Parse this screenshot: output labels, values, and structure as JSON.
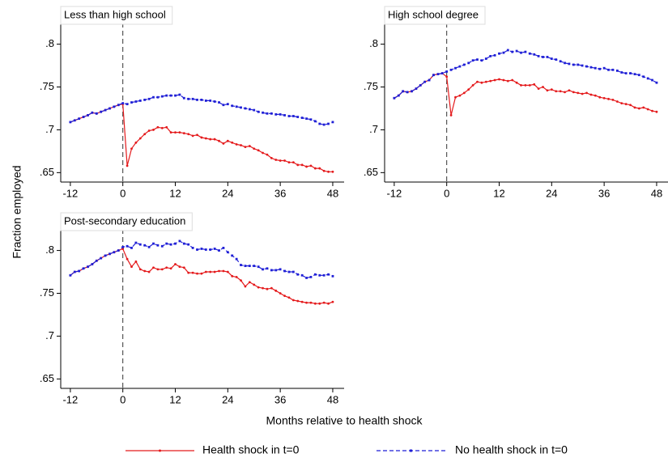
{
  "ylabel": "Fraction employed",
  "xlabel": "Months relative to health shock",
  "chart_data": [
    {
      "type": "line",
      "title": "Less than high school",
      "x": [
        -12,
        -11,
        -10,
        -9,
        -8,
        -7,
        -6,
        -5,
        -4,
        -3,
        -2,
        -1,
        0,
        1,
        2,
        3,
        4,
        5,
        6,
        7,
        8,
        9,
        10,
        11,
        12,
        13,
        14,
        15,
        16,
        17,
        18,
        19,
        20,
        21,
        22,
        23,
        24,
        25,
        26,
        27,
        28,
        29,
        30,
        31,
        32,
        33,
        34,
        35,
        36,
        37,
        38,
        39,
        40,
        41,
        42,
        43,
        44,
        45,
        46,
        47,
        48
      ],
      "series": [
        {
          "name": "Health shock in t=0",
          "color": "#e41a1c",
          "dash": false,
          "values": [
            0.709,
            0.711,
            0.713,
            0.715,
            0.717,
            0.72,
            0.719,
            0.721,
            0.723,
            0.725,
            0.727,
            0.729,
            0.73,
            0.658,
            0.678,
            0.685,
            0.69,
            0.695,
            0.699,
            0.7,
            0.703,
            0.702,
            0.703,
            0.697,
            0.697,
            0.697,
            0.696,
            0.695,
            0.693,
            0.694,
            0.691,
            0.69,
            0.689,
            0.689,
            0.687,
            0.684,
            0.687,
            0.685,
            0.683,
            0.682,
            0.68,
            0.681,
            0.678,
            0.676,
            0.673,
            0.671,
            0.667,
            0.665,
            0.664,
            0.664,
            0.662,
            0.662,
            0.659,
            0.659,
            0.657,
            0.658,
            0.655,
            0.655,
            0.652,
            0.651,
            0.651
          ]
        },
        {
          "name": "No health shock in t=0",
          "color": "#1f1fd6",
          "dash": true,
          "values": [
            0.709,
            0.711,
            0.713,
            0.715,
            0.717,
            0.72,
            0.719,
            0.721,
            0.723,
            0.725,
            0.727,
            0.729,
            0.731,
            0.73,
            0.732,
            0.733,
            0.734,
            0.735,
            0.736,
            0.738,
            0.738,
            0.739,
            0.74,
            0.74,
            0.74,
            0.741,
            0.737,
            0.736,
            0.736,
            0.735,
            0.735,
            0.734,
            0.734,
            0.733,
            0.732,
            0.729,
            0.73,
            0.728,
            0.727,
            0.726,
            0.725,
            0.724,
            0.723,
            0.721,
            0.72,
            0.719,
            0.719,
            0.718,
            0.718,
            0.717,
            0.716,
            0.716,
            0.715,
            0.714,
            0.713,
            0.712,
            0.71,
            0.707,
            0.706,
            0.707,
            0.709
          ]
        }
      ],
      "xlim": [
        -14.2,
        50.6
      ],
      "ylim": [
        0.639,
        0.844
      ],
      "xticks": [
        -12,
        0,
        12,
        24,
        36,
        48
      ],
      "yticks": [
        {
          "value": 0.65,
          "label": ".65"
        },
        {
          "value": 0.7,
          "label": ".7"
        },
        {
          "value": 0.75,
          "label": ".75"
        },
        {
          "value": 0.8,
          "label": ".8"
        }
      ],
      "xline": 0
    },
    {
      "type": "line",
      "title": "High school degree",
      "x": [
        -12,
        -11,
        -10,
        -9,
        -8,
        -7,
        -6,
        -5,
        -4,
        -3,
        -2,
        -1,
        0,
        1,
        2,
        3,
        4,
        5,
        6,
        7,
        8,
        9,
        10,
        11,
        12,
        13,
        14,
        15,
        16,
        17,
        18,
        19,
        20,
        21,
        22,
        23,
        24,
        25,
        26,
        27,
        28,
        29,
        30,
        31,
        32,
        33,
        34,
        35,
        36,
        37,
        38,
        39,
        40,
        41,
        42,
        43,
        44,
        45,
        46,
        47,
        48
      ],
      "series": [
        {
          "name": "Health shock in t=0",
          "color": "#e41a1c",
          "dash": false,
          "values": [
            0.737,
            0.74,
            0.745,
            0.744,
            0.745,
            0.748,
            0.752,
            0.756,
            0.758,
            0.764,
            0.765,
            0.766,
            0.762,
            0.717,
            0.738,
            0.74,
            0.743,
            0.747,
            0.752,
            0.756,
            0.755,
            0.756,
            0.757,
            0.758,
            0.759,
            0.758,
            0.757,
            0.758,
            0.755,
            0.752,
            0.752,
            0.752,
            0.753,
            0.748,
            0.75,
            0.746,
            0.747,
            0.745,
            0.745,
            0.744,
            0.746,
            0.744,
            0.743,
            0.742,
            0.743,
            0.741,
            0.74,
            0.738,
            0.737,
            0.736,
            0.735,
            0.733,
            0.731,
            0.73,
            0.729,
            0.726,
            0.725,
            0.726,
            0.724,
            0.722,
            0.721
          ]
        },
        {
          "name": "No health shock in t=0",
          "color": "#1f1fd6",
          "dash": true,
          "values": [
            0.737,
            0.74,
            0.745,
            0.744,
            0.745,
            0.748,
            0.752,
            0.756,
            0.758,
            0.764,
            0.765,
            0.766,
            0.768,
            0.77,
            0.772,
            0.774,
            0.776,
            0.778,
            0.781,
            0.782,
            0.781,
            0.783,
            0.786,
            0.787,
            0.789,
            0.79,
            0.793,
            0.791,
            0.792,
            0.79,
            0.791,
            0.789,
            0.788,
            0.786,
            0.785,
            0.785,
            0.783,
            0.782,
            0.78,
            0.778,
            0.777,
            0.776,
            0.776,
            0.775,
            0.774,
            0.773,
            0.772,
            0.771,
            0.772,
            0.77,
            0.77,
            0.769,
            0.767,
            0.766,
            0.766,
            0.765,
            0.764,
            0.762,
            0.76,
            0.758,
            0.755
          ]
        }
      ],
      "xlim": [
        -14.2,
        50.6
      ],
      "ylim": [
        0.639,
        0.844
      ],
      "xticks": [
        -12,
        0,
        12,
        24,
        36,
        48
      ],
      "yticks": [
        {
          "value": 0.65,
          "label": ".65"
        },
        {
          "value": 0.7,
          "label": ".7"
        },
        {
          "value": 0.75,
          "label": ".75"
        },
        {
          "value": 0.8,
          "label": ".8"
        }
      ],
      "xline": 0
    },
    {
      "type": "line",
      "title": "Post-secondary education",
      "x": [
        -12,
        -11,
        -10,
        -9,
        -8,
        -7,
        -6,
        -5,
        -4,
        -3,
        -2,
        -1,
        0,
        1,
        2,
        3,
        4,
        5,
        6,
        7,
        8,
        9,
        10,
        11,
        12,
        13,
        14,
        15,
        16,
        17,
        18,
        19,
        20,
        21,
        22,
        23,
        24,
        25,
        26,
        27,
        28,
        29,
        30,
        31,
        32,
        33,
        34,
        35,
        36,
        37,
        38,
        39,
        40,
        41,
        42,
        43,
        44,
        45,
        46,
        47,
        48
      ],
      "series": [
        {
          "name": "Health shock in t=0",
          "color": "#e41a1c",
          "dash": false,
          "values": [
            0.771,
            0.775,
            0.776,
            0.779,
            0.781,
            0.784,
            0.788,
            0.791,
            0.794,
            0.796,
            0.798,
            0.8,
            0.802,
            0.79,
            0.781,
            0.787,
            0.778,
            0.776,
            0.775,
            0.78,
            0.778,
            0.778,
            0.78,
            0.779,
            0.784,
            0.781,
            0.78,
            0.774,
            0.774,
            0.773,
            0.773,
            0.775,
            0.775,
            0.775,
            0.776,
            0.776,
            0.775,
            0.77,
            0.769,
            0.765,
            0.758,
            0.763,
            0.76,
            0.757,
            0.756,
            0.755,
            0.756,
            0.753,
            0.75,
            0.747,
            0.745,
            0.742,
            0.741,
            0.74,
            0.739,
            0.739,
            0.738,
            0.738,
            0.739,
            0.738,
            0.74
          ]
        },
        {
          "name": "No health shock in t=0",
          "color": "#1f1fd6",
          "dash": true,
          "values": [
            0.771,
            0.775,
            0.776,
            0.779,
            0.781,
            0.784,
            0.788,
            0.791,
            0.794,
            0.796,
            0.798,
            0.8,
            0.804,
            0.805,
            0.803,
            0.809,
            0.807,
            0.806,
            0.804,
            0.808,
            0.806,
            0.805,
            0.808,
            0.807,
            0.808,
            0.811,
            0.808,
            0.807,
            0.803,
            0.801,
            0.802,
            0.801,
            0.801,
            0.802,
            0.8,
            0.803,
            0.798,
            0.794,
            0.79,
            0.783,
            0.782,
            0.782,
            0.782,
            0.781,
            0.778,
            0.779,
            0.777,
            0.777,
            0.778,
            0.776,
            0.775,
            0.775,
            0.772,
            0.771,
            0.768,
            0.769,
            0.772,
            0.771,
            0.771,
            0.772,
            0.77
          ]
        }
      ],
      "xlim": [
        -14.2,
        50.6
      ],
      "ylim": [
        0.639,
        0.844
      ],
      "xticks": [
        -12,
        0,
        12,
        24,
        36,
        48
      ],
      "yticks": [
        {
          "value": 0.65,
          "label": ".65"
        },
        {
          "value": 0.7,
          "label": ".7"
        },
        {
          "value": 0.75,
          "label": ".75"
        },
        {
          "value": 0.8,
          "label": ".8"
        }
      ],
      "xline": 0
    }
  ]
}
